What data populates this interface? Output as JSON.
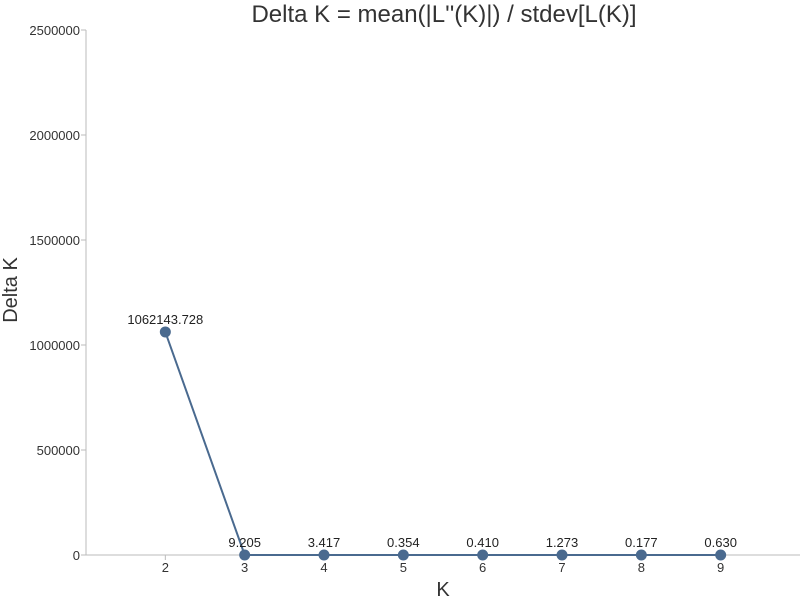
{
  "chart_data": {
    "type": "line",
    "title": "Delta K = mean(|L''(K)|) / stdev[L(K)]",
    "xlabel": "K",
    "ylabel": "Delta K",
    "x": [
      2,
      3,
      4,
      5,
      6,
      7,
      8,
      9
    ],
    "x_tick_labels": [
      "2",
      "3",
      "4",
      "5",
      "6",
      "7",
      "8",
      "9"
    ],
    "xlim": [
      1,
      10
    ],
    "ylim": [
      0,
      2500000
    ],
    "y_ticks": [
      0,
      500000,
      1000000,
      1500000,
      2000000,
      2500000
    ],
    "y_tick_labels": [
      "0",
      "500000",
      "1000000",
      "1500000",
      "2000000",
      "2500000"
    ],
    "series": [
      {
        "values": [
          1062143.728,
          9.205,
          3.417,
          0.354,
          0.41,
          1.273,
          0.177,
          0.63
        ],
        "data_labels": [
          "1062143.728",
          "9.205",
          "3.417",
          "0.354",
          "0.410",
          "1.273",
          "0.177",
          "0.630"
        ],
        "color": "#4a6a8f"
      }
    ],
    "grid": false,
    "legend": "none"
  }
}
